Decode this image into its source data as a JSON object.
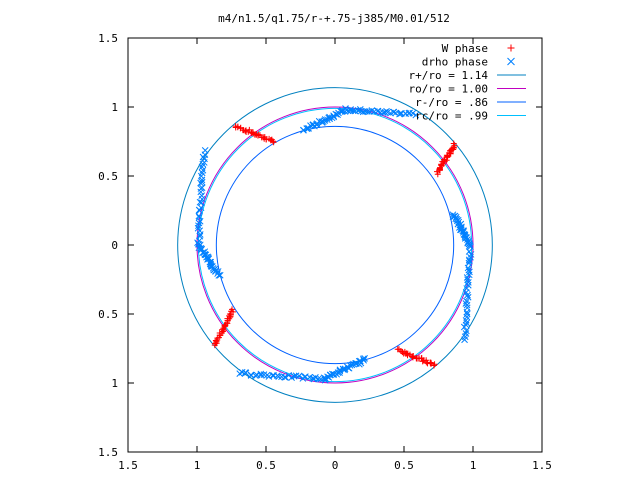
{
  "chart_data": {
    "type": "scatter",
    "title": "m4/n1.5/q1.75/r-+.75-j385/M0.01/512",
    "xlim": [
      -1.5,
      1.5
    ],
    "ylim": [
      -1.5,
      1.5
    ],
    "x_ticks": [
      {
        "value": -1.5,
        "label": "1.5"
      },
      {
        "value": -1,
        "label": "1"
      },
      {
        "value": -0.5,
        "label": "0.5"
      },
      {
        "value": 0,
        "label": "0"
      },
      {
        "value": 0.5,
        "label": "0.5"
      },
      {
        "value": 1,
        "label": "1"
      },
      {
        "value": 1.5,
        "label": "1.5"
      }
    ],
    "y_ticks": [
      {
        "value": 1.5,
        "label": "1.5"
      },
      {
        "value": 1,
        "label": "1"
      },
      {
        "value": 0.5,
        "label": "0.5"
      },
      {
        "value": 0,
        "label": "0"
      },
      {
        "value": -0.5,
        "label": "0.5"
      },
      {
        "value": -1,
        "label": "1"
      },
      {
        "value": -1.5,
        "label": "1.5"
      }
    ],
    "legend_position": "top-right",
    "grid": false,
    "series": [
      {
        "name": "W phase",
        "marker": "+",
        "color": "#ff0000",
        "segments": [
          {
            "from": [
              -0.72,
              0.86
            ],
            "to": [
              -0.44,
              0.75
            ]
          },
          {
            "from": [
              0.74,
              0.52
            ],
            "to": [
              0.87,
              0.73
            ]
          },
          {
            "from": [
              -0.87,
              -0.73
            ],
            "to": [
              -0.74,
              -0.47
            ]
          },
          {
            "from": [
              0.46,
              -0.76
            ],
            "to": [
              0.72,
              -0.87
            ]
          }
        ]
      },
      {
        "name": "drho phase",
        "marker": "x",
        "color": "#0080ff",
        "segments": [
          {
            "from": [
              -0.23,
              0.83
            ],
            "to": [
              0.08,
              0.98
            ]
          },
          {
            "from": [
              0.08,
              0.98
            ],
            "to": [
              0.58,
              0.95
            ]
          },
          {
            "from": [
              -0.95,
              0.68
            ],
            "to": [
              -0.99,
              0.0
            ]
          },
          {
            "from": [
              -0.99,
              0.0
            ],
            "to": [
              -0.84,
              -0.22
            ]
          },
          {
            "from": [
              0.86,
              0.22
            ],
            "to": [
              0.98,
              0.0
            ]
          },
          {
            "from": [
              0.98,
              0.0
            ],
            "to": [
              0.94,
              -0.68
            ]
          },
          {
            "from": [
              -0.69,
              -0.93
            ],
            "to": [
              -0.08,
              -0.97
            ]
          },
          {
            "from": [
              -0.08,
              -0.97
            ],
            "to": [
              0.22,
              -0.83
            ]
          }
        ]
      }
    ],
    "circles": [
      {
        "name": "r+/ro = 1.14",
        "radius": 1.14,
        "color": "#0080c0"
      },
      {
        "name": "ro/ro = 1.00",
        "radius": 1.0,
        "color": "#c000c0"
      },
      {
        "name": "r-/ro = .86",
        "radius": 0.86,
        "color": "#0060ff"
      },
      {
        "name": "rc/ro = .99",
        "radius": 0.99,
        "color": "#00c0ff"
      }
    ]
  }
}
